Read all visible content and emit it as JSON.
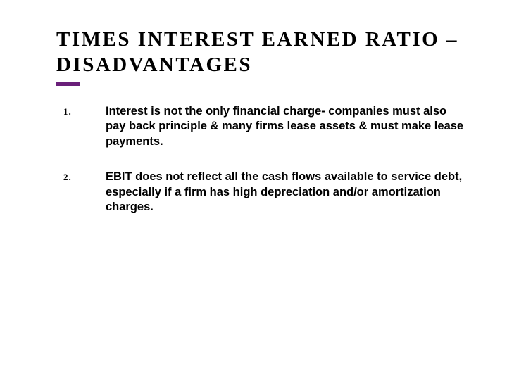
{
  "slide": {
    "title": "times interest earned ratio – disadvantages",
    "accent_color": "#6a1f7a",
    "background_color": "#ffffff",
    "title_fontsize": 29,
    "title_letter_spacing": 2.5,
    "body_fontsize": 16.5,
    "items": [
      {
        "num": "1.",
        "text": "Interest is not the only financial charge- companies must also pay back principle & many firms lease assets & must make lease payments."
      },
      {
        "num": "2.",
        "text": "EBIT does not reflect all the cash flows available to service debt, especially if a firm has high depreciation and/or amortization charges."
      }
    ]
  }
}
